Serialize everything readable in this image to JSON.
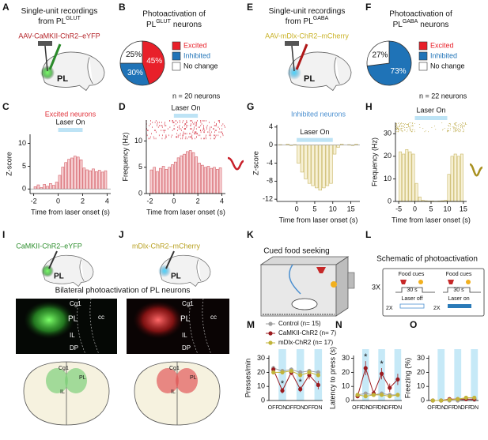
{
  "panels": {
    "letters": [
      "A",
      "B",
      "C",
      "D",
      "E",
      "F",
      "G",
      "H",
      "I",
      "J",
      "K",
      "L",
      "M",
      "N",
      "O"
    ],
    "A": {
      "title": [
        "Single-unit recordings",
        "from PL",
        "GLUT"
      ],
      "virus": "AAV-CaMKII-ChR2–eYFP",
      "region": "PL"
    },
    "E": {
      "title": [
        "Single-unit recordings",
        "from PL",
        "GABA"
      ],
      "virus": "AAV-mDlx-ChR2–mCherry",
      "region": "PL"
    },
    "I": {
      "virus": "CaMKII-ChR2–eYFP",
      "region": "PL"
    },
    "J": {
      "virus": "mDlx-ChR2–mCherry",
      "region": "PL"
    },
    "histology_title": "Bilateral photoactivation of PL neurons",
    "histology_labels": [
      "Cg1",
      "PL",
      "IL",
      "DP",
      "cc"
    ],
    "atlas_labels": [
      "Cg1",
      "PL",
      "IL"
    ],
    "K": {
      "title": "Cued food seeking"
    },
    "L": {
      "title": "Schematic of photoactivation",
      "repeat": "3X",
      "cue": "Food cues",
      "duration": "30 s",
      "laser_repeat": "2X",
      "laser_off": "Laser off",
      "laser_on": "Laser on"
    }
  },
  "chart_data": [
    {
      "type": "pie",
      "title": [
        "Photoactivation of",
        "PL",
        "GLUT",
        "neurons"
      ],
      "categories": [
        "Excited",
        "Inhibited",
        "No change"
      ],
      "values": [
        45,
        30,
        25
      ],
      "value_labels": [
        "45%",
        "30%",
        "25%"
      ],
      "colors": [
        "#e8202a",
        "#1f73b7",
        "#ffffff"
      ],
      "annotation": "n = 20 neurons"
    },
    {
      "type": "pie",
      "title": [
        "Photoactivation of",
        "PL",
        "GABA",
        "neurons"
      ],
      "categories": [
        "Excited",
        "Inhibited",
        "No change"
      ],
      "values": [
        0,
        73,
        27
      ],
      "value_labels": [
        null,
        "73%",
        "27%"
      ],
      "colors": [
        "#e8202a",
        "#1f73b7",
        "#ffffff"
      ],
      "annotation": "n = 22 neurons"
    },
    {
      "type": "histogram",
      "title": "Excited neurons",
      "title_color": "#e0343c",
      "annotation": "Laser On",
      "laser": [
        0,
        2
      ],
      "xlabel": "Time from laser onset (s)",
      "ylabel": "Z-score",
      "bins": [
        -2,
        -1.75,
        -1.5,
        -1.25,
        -1,
        -0.75,
        -0.5,
        -0.25,
        0,
        0.25,
        0.5,
        0.75,
        1,
        1.25,
        1.5,
        1.75,
        2,
        2.25,
        2.5,
        2.75,
        3,
        3.25,
        3.5,
        3.75,
        4
      ],
      "values": [
        0.5,
        0.9,
        0.3,
        1.0,
        0.6,
        1.2,
        0.8,
        1.5,
        3.0,
        4.8,
        5.8,
        6.5,
        6.8,
        7.2,
        7.0,
        6.4,
        4.6,
        4.2,
        4.0,
        4.4,
        3.8,
        4.1,
        3.7,
        4.0
      ],
      "color": "#f6d0d3",
      "edgecolor": "#d45b63",
      "xlim": [
        -2.3,
        4.3
      ],
      "ylim": [
        -1,
        12
      ],
      "xticks": [
        -2,
        0,
        2,
        4
      ],
      "yticks": [
        0,
        5,
        10
      ]
    },
    {
      "type": "histogram",
      "annotation": "Laser On",
      "laser": [
        0,
        2
      ],
      "raster_color": "#d94050",
      "xlabel": "Time from laser onset (s)",
      "ylabel": "Frequency (Hz)",
      "bins": [
        -2,
        -1.75,
        -1.5,
        -1.25,
        -1,
        -0.75,
        -0.5,
        -0.25,
        0,
        0.25,
        0.5,
        0.75,
        1,
        1.25,
        1.5,
        1.75,
        2,
        2.25,
        2.5,
        2.75,
        3,
        3.25,
        3.5,
        3.75,
        4
      ],
      "values": [
        4.5,
        5.0,
        4.2,
        4.8,
        5.2,
        4.6,
        5.0,
        5.5,
        6.0,
        6.8,
        7.2,
        7.5,
        8.0,
        8.2,
        7.8,
        7.0,
        5.8,
        5.4,
        5.0,
        5.2,
        4.8,
        5.0,
        4.6,
        4.9
      ],
      "color": "#f6d0d3",
      "edgecolor": "#d45b63",
      "xlim": [
        -2.3,
        4.3
      ],
      "ylim": [
        0,
        14
      ],
      "xticks": [
        -2,
        0,
        2,
        4
      ],
      "yticks": [
        0,
        5,
        10
      ]
    },
    {
      "type": "histogram",
      "title": "Inhibited neurons",
      "title_color": "#4a8fd0",
      "annotation": "Laser On",
      "laser": [
        0,
        10
      ],
      "xlabel": "Time from laser onset (s)",
      "ylabel": "Z-score",
      "bins": [
        -5,
        -4,
        -3,
        -2,
        -1,
        0,
        1,
        2,
        3,
        4,
        5,
        6,
        7,
        8,
        9,
        10,
        11,
        12,
        13,
        14,
        15,
        16,
        17
      ],
      "values": [
        0.1,
        0,
        0.2,
        -0.1,
        0.1,
        -4,
        -6,
        -7.5,
        -8.5,
        -9,
        -9.5,
        -10,
        -9.5,
        -9,
        -8.5,
        -2,
        -0.5,
        0.2,
        0,
        0.1,
        -0.1,
        0.2
      ],
      "color": "#f7f1d6",
      "edgecolor": "#c8b560",
      "xlim": [
        -5.5,
        17.5
      ],
      "ylim": [
        -12.5,
        4.5
      ],
      "xticks": [
        0,
        5,
        10,
        15
      ],
      "yticks": [
        4,
        0,
        -4,
        -8,
        -12
      ]
    },
    {
      "type": "histogram",
      "annotation": "Laser On",
      "laser": [
        0,
        10
      ],
      "raster_color": "#b8a33a",
      "xlabel": "Time from laser onset (s)",
      "ylabel": "Frequency (Hz)",
      "bins": [
        -5,
        -4,
        -3,
        -2,
        -1,
        0,
        1,
        2,
        3,
        4,
        5,
        6,
        7,
        8,
        9,
        10,
        11,
        12,
        13,
        14,
        15
      ],
      "values": [
        22,
        21,
        23,
        22,
        21,
        8,
        2,
        0.5,
        0.3,
        0.2,
        0.2,
        0.1,
        0.2,
        0.3,
        0.5,
        12,
        20,
        21,
        20,
        21
      ],
      "color": "#f7f1d6",
      "edgecolor": "#c8b560",
      "xlim": [
        -6,
        16
      ],
      "ylim": [
        0,
        35
      ],
      "xticks": [
        -5,
        0,
        5,
        10,
        15
      ],
      "yticks": [
        0,
        10,
        20,
        30
      ]
    },
    {
      "type": "line",
      "ylabel": "Presses/min",
      "categories": [
        "OFF",
        "ON",
        "OFF",
        "ON",
        "OFF",
        "ON"
      ],
      "ylim": [
        0,
        32
      ],
      "yticks": [
        0,
        10,
        20,
        30
      ],
      "significance": [
        null,
        "*",
        null,
        "*",
        null,
        null
      ],
      "series": [
        {
          "name": "Control (n= 15)",
          "color": "#a0a0a0",
          "values": [
            23,
            21,
            22,
            20,
            21,
            20
          ],
          "errors": [
            1.5,
            1.5,
            1.5,
            1.5,
            1.5,
            1.5
          ]
        },
        {
          "name": "CaMKII-ChR2 (n= 7)",
          "color": "#9b1b1f",
          "values": [
            22,
            7,
            20,
            8,
            18,
            11
          ],
          "errors": [
            2,
            2,
            2,
            2,
            3,
            3
          ]
        },
        {
          "name": "mDlx-ChR2 (n= 17)",
          "color": "#c2b43a",
          "values": [
            20,
            20,
            21,
            18,
            20,
            18
          ],
          "errors": [
            1.5,
            1.5,
            1.5,
            1.5,
            1.5,
            1.5
          ]
        }
      ]
    },
    {
      "type": "line",
      "ylabel": "Latency to press (s)",
      "categories": [
        "OFF",
        "ON",
        "OFF",
        "ON",
        "OFF",
        "ON"
      ],
      "ylim": [
        0,
        32
      ],
      "yticks": [
        0,
        10,
        20,
        30
      ],
      "significance": [
        null,
        "*",
        null,
        "*",
        null,
        null
      ],
      "series": [
        {
          "color": "#a0a0a0",
          "values": [
            4,
            5,
            4,
            5,
            4,
            4
          ],
          "errors": [
            1,
            1,
            1,
            1,
            1,
            1
          ]
        },
        {
          "color": "#9b1b1f",
          "values": [
            3,
            23,
            5,
            19,
            9,
            15
          ],
          "errors": [
            1,
            5,
            2,
            4,
            3,
            4
          ]
        },
        {
          "color": "#c2b43a",
          "values": [
            4,
            3,
            4,
            4,
            3,
            4
          ],
          "errors": [
            1,
            1,
            1,
            1,
            1,
            1
          ]
        }
      ]
    },
    {
      "type": "line",
      "ylabel": "Freezing (%)",
      "categories": [
        "OFF",
        "ON",
        "OFF",
        "ON",
        "OFF",
        "ON"
      ],
      "ylim": [
        0,
        32
      ],
      "yticks": [
        0,
        10,
        20,
        30
      ],
      "series": [
        {
          "color": "#a0a0a0",
          "values": [
            0,
            0,
            0,
            0,
            1,
            0.5
          ],
          "errors": [
            0,
            0,
            0.5,
            0.5,
            1,
            1
          ]
        },
        {
          "color": "#9b1b1f",
          "values": [
            0,
            0,
            1,
            1,
            1,
            1
          ],
          "errors": [
            0,
            0,
            0.5,
            0.5,
            1,
            1
          ]
        },
        {
          "color": "#c2b43a",
          "values": [
            0,
            0,
            0.5,
            1,
            2,
            2
          ],
          "errors": [
            0,
            0,
            0.5,
            0.5,
            1,
            1
          ]
        }
      ]
    }
  ]
}
